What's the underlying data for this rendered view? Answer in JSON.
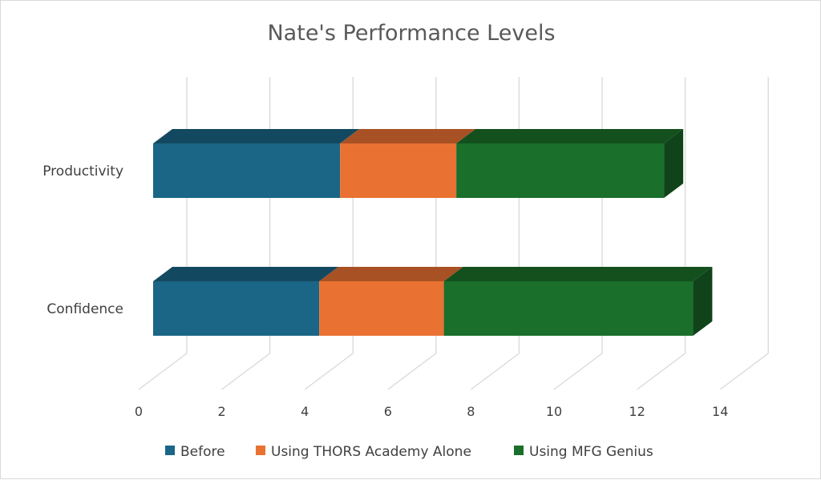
{
  "chart_data": {
    "type": "bar",
    "orientation": "horizontal",
    "stacked": true,
    "three_d": true,
    "title": "Nate's Performance Levels",
    "xlabel": "",
    "ylabel": "",
    "categories": [
      "Productivity",
      "Confidence"
    ],
    "series": [
      {
        "name": "Before",
        "values": [
          4.5,
          4.0
        ],
        "color": "#1b6586"
      },
      {
        "name": "Using THORS Academy Alone",
        "values": [
          2.8,
          3.0
        ],
        "color": "#e97132"
      },
      {
        "name": "Using MFG Genius",
        "values": [
          5.0,
          6.0
        ],
        "color": "#1a6f2a"
      }
    ],
    "xlim": [
      0,
      14
    ],
    "xticks": [
      "0",
      "2",
      "4",
      "6",
      "8",
      "10",
      "12",
      "14"
    ],
    "grid": true,
    "legend": "bottom"
  }
}
